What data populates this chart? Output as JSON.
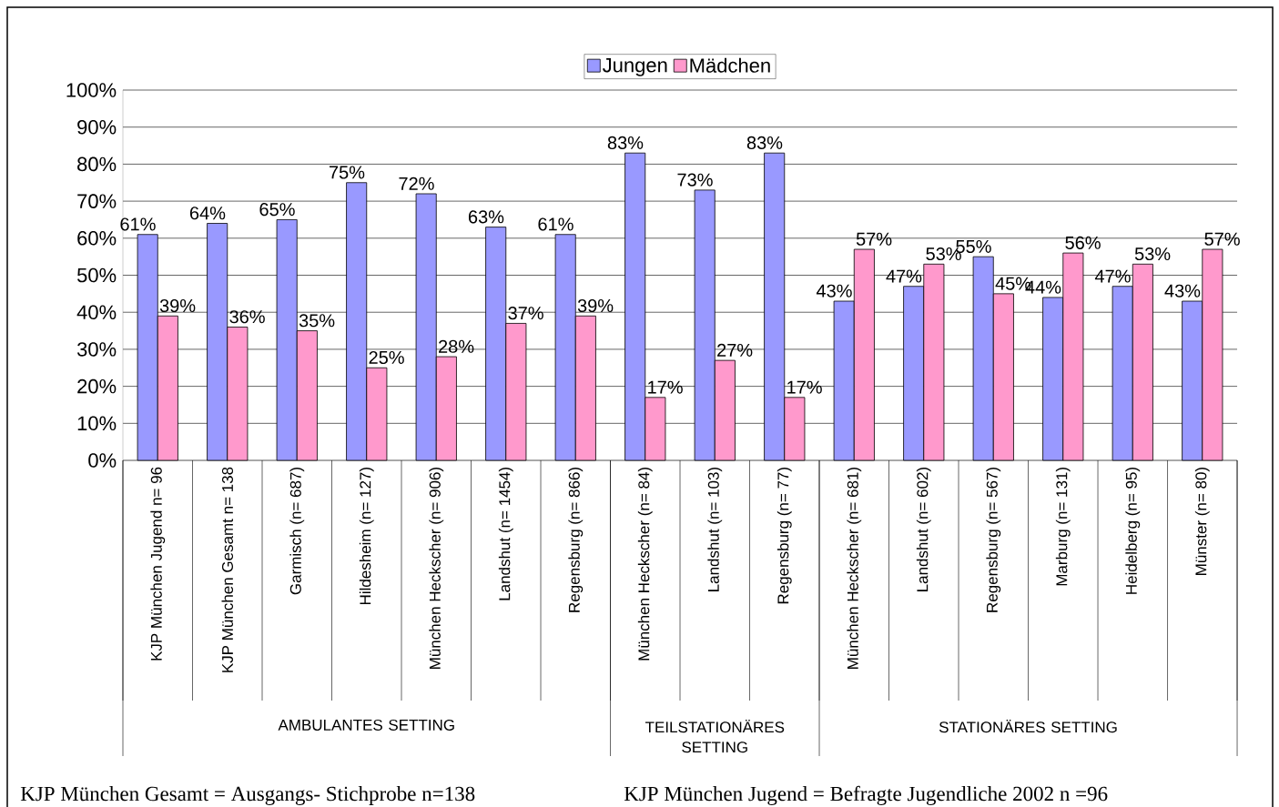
{
  "chart_data": {
    "type": "bar",
    "categories": [
      "KJP München Jugend n= 96",
      "KJP München Gesamt n= 138",
      "Garmisch (n= 687)",
      "Hildesheim (n= 127)",
      "München Heckscher (n= 906)",
      "Landshut (n= 1454)",
      "Regensburg (n= 866)",
      "München Heckscher (n= 84)",
      "Landshut (n= 103)",
      "Regensburg (n= 77)",
      "München Heckscher (n= 681)",
      "Landshut (n= 602)",
      "Regensburg (n= 567)",
      "Marburg (n= 131)",
      "Heidelberg (n= 95)",
      "Münster (n= 80)"
    ],
    "series": [
      {
        "name": "Jungen",
        "color": "#9999ff",
        "values": [
          61,
          64,
          65,
          75,
          72,
          63,
          61,
          83,
          73,
          83,
          43,
          47,
          55,
          44,
          47,
          43
        ],
        "value_labels": [
          "61%",
          "64%",
          "65%",
          "75%",
          "72%",
          "63%",
          "61%",
          "83%",
          "73%",
          "83%",
          "43%",
          "47%",
          "55%",
          "44%",
          "47%",
          "43%"
        ]
      },
      {
        "name": "Mädchen",
        "color": "#ff99cc",
        "values": [
          39,
          36,
          35,
          25,
          28,
          37,
          39,
          17,
          27,
          17,
          57,
          53,
          45,
          56,
          53,
          57
        ],
        "value_labels": [
          "39%",
          "36%",
          "35%",
          "25%",
          "28%",
          "37%",
          "39%",
          "17%",
          "27%",
          "17%",
          "57%",
          "53%",
          "45%",
          "56%",
          "53%",
          "57%"
        ]
      }
    ],
    "ylim": [
      0,
      100
    ],
    "yticks": [
      {
        "value": 0,
        "label": "0%"
      },
      {
        "value": 10,
        "label": "10%"
      },
      {
        "value": 20,
        "label": "20%"
      },
      {
        "value": 30,
        "label": "30%"
      },
      {
        "value": 40,
        "label": "40%"
      },
      {
        "value": 50,
        "label": "50%"
      },
      {
        "value": 60,
        "label": "60%"
      },
      {
        "value": 70,
        "label": "70%"
      },
      {
        "value": 80,
        "label": "80%"
      },
      {
        "value": 90,
        "label": "90%"
      },
      {
        "value": 100,
        "label": "100%"
      }
    ],
    "grid": "y",
    "legend": "top",
    "annotations": [
      "AMBULANTES SETTING",
      "TEILSTATIONÄRES SETTING",
      "STATIONÄRES SETTING",
      "KJP München Gesamt = Ausgangs- Stichprobe n=138",
      "KJP München Jugend = Befragte Jugendliche 2002 n =96"
    ]
  }
}
